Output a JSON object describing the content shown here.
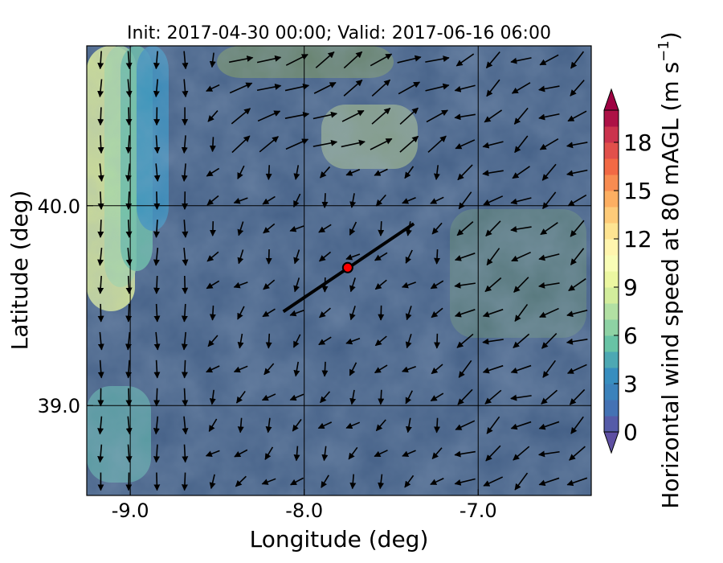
{
  "chart_data": {
    "type": "heatmap",
    "title": "Init: 2017-04-30 00:00; Valid: 2017-06-16 06:00",
    "xlabel": "Longitude (deg)",
    "ylabel": "Latitude (deg)",
    "xlim": [
      -9.25,
      -6.35
    ],
    "ylim": [
      38.55,
      40.8
    ],
    "x_ticks": [
      -9.0,
      -8.0,
      -7.0
    ],
    "x_tick_labels": [
      "-9.0",
      "-8.0",
      "-7.0"
    ],
    "y_ticks": [
      39.0,
      40.0
    ],
    "y_tick_labels": [
      "39.0",
      "40.0"
    ],
    "grid": true,
    "colorbar": {
      "label": "Horizontal wind speed at 80 mAGL (m s",
      "label_sup": "−1",
      "label_end": ")",
      "min": 0,
      "max": 20,
      "levels_step": 1,
      "extend": "both",
      "ticks": [
        0,
        3,
        6,
        9,
        12,
        15,
        18
      ],
      "tick_labels": [
        "0",
        "3",
        "6",
        "9",
        "12",
        "15",
        "18"
      ],
      "colormap": [
        "#5e4fa2",
        "#3e7ab8",
        "#3690c0",
        "#66c2a5",
        "#abdda4",
        "#e6f598",
        "#ffffbf",
        "#fee08b",
        "#fdae61",
        "#f46d43",
        "#d53e4f",
        "#9e0142"
      ]
    },
    "cross_section_line": {
      "start": {
        "lon": -8.12,
        "lat": 39.47
      },
      "end": {
        "lon": -7.37,
        "lat": 39.91
      },
      "color": "#000000"
    },
    "marker": {
      "lon": -7.75,
      "lat": 39.69,
      "fill": "#ff0000",
      "edge": "#000000"
    },
    "wind_vectors": "quiver arrows on regular lon/lat grid (mostly southward flow in west, north-westerly/south-easterly mix in east)"
  }
}
